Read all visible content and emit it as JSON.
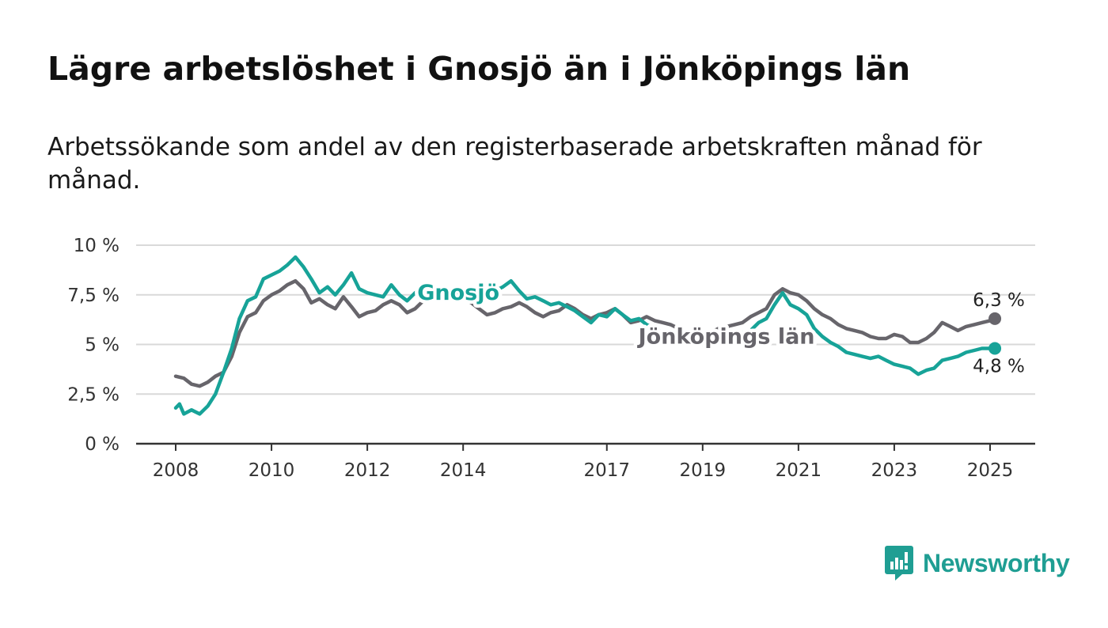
{
  "title": "Lägre arbetslöshet i Gnosjö än i Jönköpings län",
  "subtitle": "Arbetssökande som andel av den registerbaserade arbetskraften månad för månad.",
  "brand": {
    "name": "Newsworthy",
    "icon": "newsworthy-chart-bubble-icon"
  },
  "chart_data": {
    "type": "line",
    "x_ticks": [
      {
        "value": 2008,
        "label": "2008"
      },
      {
        "value": 2010,
        "label": "2010"
      },
      {
        "value": 2012,
        "label": "2012"
      },
      {
        "value": 2014,
        "label": "2014"
      },
      {
        "value": 2017,
        "label": "2017"
      },
      {
        "value": 2019,
        "label": "2019"
      },
      {
        "value": 2021,
        "label": "2021"
      },
      {
        "value": 2023,
        "label": "2023"
      },
      {
        "value": 2025,
        "label": "2025"
      }
    ],
    "y_ticks": [
      {
        "value": 0,
        "label": "0 %"
      },
      {
        "value": 2.5,
        "label": "2,5 %"
      },
      {
        "value": 5,
        "label": "5 %"
      },
      {
        "value": 7.5,
        "label": "7,5 %"
      },
      {
        "value": 10,
        "label": "10 %"
      }
    ],
    "xlim": [
      2007.2,
      2026.0
    ],
    "ylim": [
      0,
      10
    ],
    "grid": true,
    "series": [
      {
        "name": "Jönköpings län",
        "color": "#67656b",
        "end_label": "6,3 %",
        "points": [
          [
            2008.0,
            3.4
          ],
          [
            2008.17,
            3.3
          ],
          [
            2008.33,
            3.0
          ],
          [
            2008.5,
            2.9
          ],
          [
            2008.67,
            3.1
          ],
          [
            2008.83,
            3.4
          ],
          [
            2009.0,
            3.6
          ],
          [
            2009.17,
            4.4
          ],
          [
            2009.33,
            5.6
          ],
          [
            2009.5,
            6.4
          ],
          [
            2009.67,
            6.6
          ],
          [
            2009.83,
            7.2
          ],
          [
            2010.0,
            7.5
          ],
          [
            2010.17,
            7.7
          ],
          [
            2010.33,
            8.0
          ],
          [
            2010.5,
            8.2
          ],
          [
            2010.67,
            7.8
          ],
          [
            2010.83,
            7.1
          ],
          [
            2011.0,
            7.3
          ],
          [
            2011.17,
            7.0
          ],
          [
            2011.33,
            6.8
          ],
          [
            2011.5,
            7.4
          ],
          [
            2011.67,
            6.9
          ],
          [
            2011.83,
            6.4
          ],
          [
            2012.0,
            6.6
          ],
          [
            2012.17,
            6.7
          ],
          [
            2012.33,
            7.0
          ],
          [
            2012.5,
            7.2
          ],
          [
            2012.67,
            7.0
          ],
          [
            2012.83,
            6.6
          ],
          [
            2013.0,
            6.8
          ],
          [
            2013.17,
            7.2
          ],
          [
            2013.33,
            7.6
          ],
          [
            2013.5,
            7.8
          ],
          [
            2013.67,
            7.5
          ],
          [
            2013.83,
            7.2
          ],
          [
            2014.0,
            7.3
          ],
          [
            2014.17,
            7.1
          ],
          [
            2014.33,
            6.8
          ],
          [
            2014.5,
            6.5
          ],
          [
            2014.67,
            6.6
          ],
          [
            2014.83,
            6.8
          ],
          [
            2015.0,
            6.9
          ],
          [
            2015.17,
            7.1
          ],
          [
            2015.33,
            6.9
          ],
          [
            2015.5,
            6.6
          ],
          [
            2015.67,
            6.4
          ],
          [
            2015.83,
            6.6
          ],
          [
            2016.0,
            6.7
          ],
          [
            2016.17,
            7.0
          ],
          [
            2016.33,
            6.8
          ],
          [
            2016.5,
            6.5
          ],
          [
            2016.67,
            6.3
          ],
          [
            2016.83,
            6.5
          ],
          [
            2017.0,
            6.6
          ],
          [
            2017.17,
            6.8
          ],
          [
            2017.33,
            6.5
          ],
          [
            2017.5,
            6.1
          ],
          [
            2017.67,
            6.2
          ],
          [
            2017.83,
            6.4
          ],
          [
            2018.0,
            6.2
          ],
          [
            2018.17,
            6.1
          ],
          [
            2018.33,
            6.0
          ],
          [
            2018.5,
            5.8
          ],
          [
            2018.67,
            5.6
          ],
          [
            2018.83,
            5.5
          ],
          [
            2019.0,
            5.5
          ],
          [
            2019.17,
            5.6
          ],
          [
            2019.33,
            5.8
          ],
          [
            2019.5,
            5.9
          ],
          [
            2019.67,
            6.0
          ],
          [
            2019.83,
            6.1
          ],
          [
            2020.0,
            6.4
          ],
          [
            2020.17,
            6.6
          ],
          [
            2020.33,
            6.8
          ],
          [
            2020.5,
            7.5
          ],
          [
            2020.67,
            7.8
          ],
          [
            2020.83,
            7.6
          ],
          [
            2021.0,
            7.5
          ],
          [
            2021.17,
            7.2
          ],
          [
            2021.33,
            6.8
          ],
          [
            2021.5,
            6.5
          ],
          [
            2021.67,
            6.3
          ],
          [
            2021.83,
            6.0
          ],
          [
            2022.0,
            5.8
          ],
          [
            2022.17,
            5.7
          ],
          [
            2022.33,
            5.6
          ],
          [
            2022.5,
            5.4
          ],
          [
            2022.67,
            5.3
          ],
          [
            2022.83,
            5.3
          ],
          [
            2023.0,
            5.5
          ],
          [
            2023.17,
            5.4
          ],
          [
            2023.33,
            5.1
          ],
          [
            2023.5,
            5.1
          ],
          [
            2023.67,
            5.3
          ],
          [
            2023.83,
            5.6
          ],
          [
            2024.0,
            6.1
          ],
          [
            2024.17,
            5.9
          ],
          [
            2024.33,
            5.7
          ],
          [
            2024.5,
            5.9
          ],
          [
            2024.67,
            6.0
          ],
          [
            2024.83,
            6.1
          ],
          [
            2025.0,
            6.2
          ],
          [
            2025.1,
            6.3
          ]
        ]
      },
      {
        "name": "Gnosjö",
        "color": "#17a398",
        "end_label": "4,8 %",
        "points": [
          [
            2008.0,
            1.8
          ],
          [
            2008.08,
            2.0
          ],
          [
            2008.17,
            1.5
          ],
          [
            2008.33,
            1.7
          ],
          [
            2008.5,
            1.5
          ],
          [
            2008.67,
            1.9
          ],
          [
            2008.83,
            2.5
          ],
          [
            2009.0,
            3.6
          ],
          [
            2009.17,
            4.8
          ],
          [
            2009.33,
            6.3
          ],
          [
            2009.5,
            7.2
          ],
          [
            2009.67,
            7.4
          ],
          [
            2009.83,
            8.3
          ],
          [
            2010.0,
            8.5
          ],
          [
            2010.17,
            8.7
          ],
          [
            2010.33,
            9.0
          ],
          [
            2010.5,
            9.4
          ],
          [
            2010.67,
            8.9
          ],
          [
            2010.83,
            8.3
          ],
          [
            2011.0,
            7.6
          ],
          [
            2011.17,
            7.9
          ],
          [
            2011.33,
            7.5
          ],
          [
            2011.5,
            8.0
          ],
          [
            2011.67,
            8.6
          ],
          [
            2011.83,
            7.8
          ],
          [
            2012.0,
            7.6
          ],
          [
            2012.17,
            7.5
          ],
          [
            2012.33,
            7.4
          ],
          [
            2012.5,
            8.0
          ],
          [
            2012.67,
            7.5
          ],
          [
            2012.83,
            7.2
          ],
          [
            2013.0,
            7.6
          ],
          [
            2013.17,
            7.9
          ],
          [
            2013.33,
            8.0
          ],
          [
            2013.5,
            7.8
          ],
          [
            2013.67,
            7.6
          ],
          [
            2013.83,
            7.5
          ],
          [
            2014.0,
            7.6
          ],
          [
            2014.17,
            7.3
          ],
          [
            2014.33,
            7.5
          ],
          [
            2014.5,
            7.6
          ],
          [
            2014.67,
            7.7
          ],
          [
            2014.83,
            7.9
          ],
          [
            2015.0,
            8.2
          ],
          [
            2015.17,
            7.7
          ],
          [
            2015.33,
            7.3
          ],
          [
            2015.5,
            7.4
          ],
          [
            2015.67,
            7.2
          ],
          [
            2015.83,
            7.0
          ],
          [
            2016.0,
            7.1
          ],
          [
            2016.17,
            6.9
          ],
          [
            2016.33,
            6.7
          ],
          [
            2016.5,
            6.4
          ],
          [
            2016.67,
            6.1
          ],
          [
            2016.83,
            6.5
          ],
          [
            2017.0,
            6.4
          ],
          [
            2017.17,
            6.8
          ],
          [
            2017.33,
            6.5
          ],
          [
            2017.5,
            6.2
          ],
          [
            2017.67,
            6.3
          ],
          [
            2017.83,
            6.0
          ],
          [
            2018.0,
            5.8
          ],
          [
            2018.17,
            5.6
          ],
          [
            2018.33,
            5.3
          ],
          [
            2018.5,
            5.0
          ],
          [
            2018.67,
            5.1
          ],
          [
            2018.83,
            5.0
          ],
          [
            2019.0,
            5.0
          ],
          [
            2019.17,
            5.2
          ],
          [
            2019.33,
            5.1
          ],
          [
            2019.5,
            5.2
          ],
          [
            2019.67,
            5.4
          ],
          [
            2019.83,
            5.6
          ],
          [
            2020.0,
            5.7
          ],
          [
            2020.17,
            6.1
          ],
          [
            2020.33,
            6.3
          ],
          [
            2020.5,
            7.0
          ],
          [
            2020.67,
            7.6
          ],
          [
            2020.83,
            7.0
          ],
          [
            2021.0,
            6.8
          ],
          [
            2021.17,
            6.5
          ],
          [
            2021.33,
            5.8
          ],
          [
            2021.5,
            5.4
          ],
          [
            2021.67,
            5.1
          ],
          [
            2021.83,
            4.9
          ],
          [
            2022.0,
            4.6
          ],
          [
            2022.17,
            4.5
          ],
          [
            2022.33,
            4.4
          ],
          [
            2022.5,
            4.3
          ],
          [
            2022.67,
            4.4
          ],
          [
            2022.83,
            4.2
          ],
          [
            2023.0,
            4.0
          ],
          [
            2023.17,
            3.9
          ],
          [
            2023.33,
            3.8
          ],
          [
            2023.5,
            3.5
          ],
          [
            2023.67,
            3.7
          ],
          [
            2023.83,
            3.8
          ],
          [
            2024.0,
            4.2
          ],
          [
            2024.17,
            4.3
          ],
          [
            2024.33,
            4.4
          ],
          [
            2024.5,
            4.6
          ],
          [
            2024.67,
            4.7
          ],
          [
            2024.83,
            4.8
          ],
          [
            2025.0,
            4.8
          ],
          [
            2025.1,
            4.8
          ]
        ]
      }
    ],
    "inline_labels": [
      {
        "series": "Gnosjö",
        "text": "Gnosjö",
        "x": 2013.9,
        "y": 7.6
      },
      {
        "series": "Jönköpings län",
        "text": "Jönköpings län",
        "x": 2019.5,
        "y": 5.4
      }
    ]
  }
}
